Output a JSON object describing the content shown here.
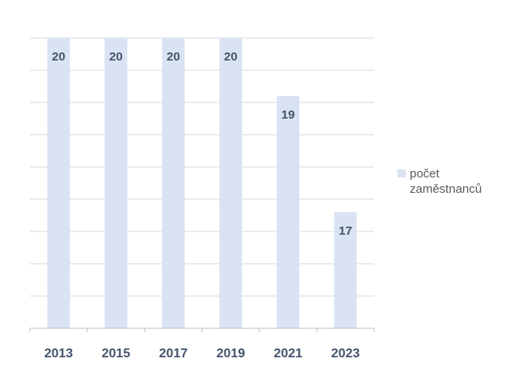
{
  "chart_data": {
    "type": "bar",
    "categories": [
      "2013",
      "2015",
      "2017",
      "2019",
      "2021",
      "2023"
    ],
    "series": [
      {
        "name": "počet zaměstnanců",
        "values": [
          20,
          20,
          20,
          20,
          19,
          17
        ]
      }
    ],
    "data_labels": [
      "20",
      "20",
      "20",
      "20",
      "19",
      "17"
    ],
    "ylim": [
      15,
      20
    ],
    "grid": true,
    "legend_position": "right",
    "colors": {
      "bar": "#dae3f3",
      "grid": "#d9d9d9",
      "axis": "#bfbfbf",
      "text": "#44546a",
      "legend_text": "#595959"
    }
  }
}
